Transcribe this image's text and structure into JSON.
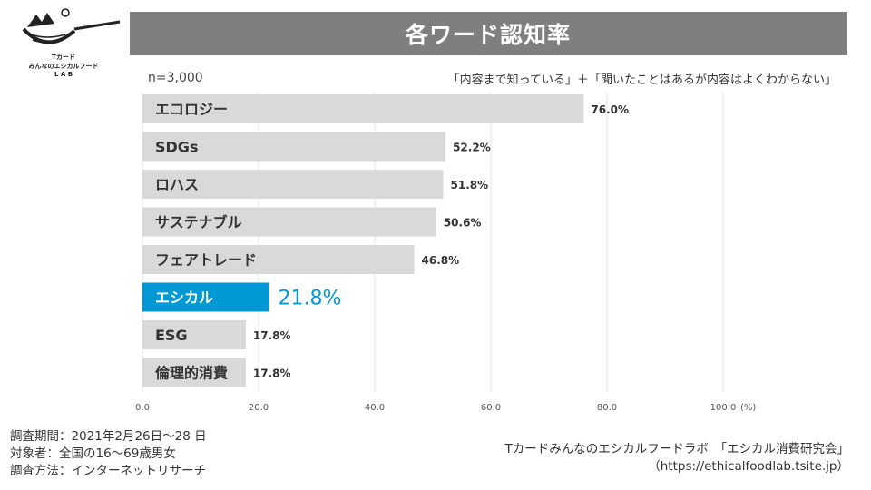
{
  "logo": {
    "line1": "Tカード",
    "line2": "みんなのエシカルフード",
    "line3": "L A B"
  },
  "title": "各ワード認知率",
  "sample_size": "n=3,000",
  "definition_note": "「内容まで知っている」＋「聞いたことはあるが内容はよくわからない」",
  "colors": {
    "bar": "#d9d9d9",
    "highlight": "#0099d6",
    "title_bg": "#7f7f7f",
    "grid": "#e4e4e4"
  },
  "chart_data": {
    "type": "bar",
    "orientation": "horizontal",
    "categories": [
      "エコロジー",
      "SDGs",
      "ロハス",
      "サステナブル",
      "フェアトレード",
      "エシカル",
      "ESG",
      "倫理的消費"
    ],
    "values": [
      76.0,
      52.2,
      51.8,
      50.6,
      46.8,
      21.8,
      17.8,
      17.8
    ],
    "value_labels": [
      "76.0%",
      "52.2%",
      "51.8%",
      "50.6%",
      "46.8%",
      "21.8%",
      "17.8%",
      "17.8%"
    ],
    "highlight_index": 5,
    "xlim": [
      0,
      100
    ],
    "xticks": [
      "0.0",
      "20.0",
      "40.0",
      "60.0",
      "80.0",
      "100.0"
    ],
    "xunit": "(%)",
    "grid": true
  },
  "footer": {
    "period": "調査期間：2021年2月26日～28 日",
    "target": "対象者：全国の16～69歳男女",
    "method": "調査方法：インターネットリサーチ",
    "org": "Tカードみんなのエシカルフードラボ　「エシカル消費研究会」",
    "url": "（https://ethicalfoodlab.tsite.jp）"
  }
}
